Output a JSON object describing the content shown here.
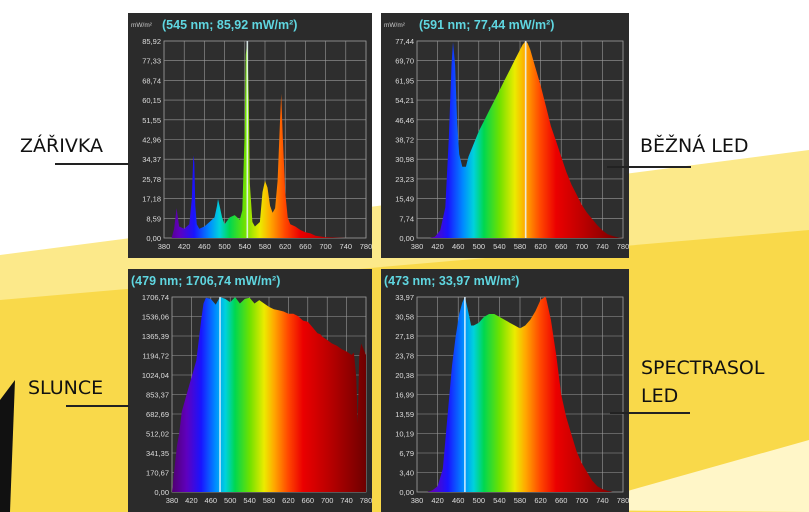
{
  "labels": {
    "zarivka": "ZÁŘIVKA",
    "bezna_led": "BĚŽNÁ LED",
    "slunce": "SLUNCE",
    "spectrasol_line1": "SPECTRASOL",
    "spectrasol_line2": "LED"
  },
  "colors": {
    "background_yellow": "#f9d94a",
    "background_light": "#fce98a",
    "panel_bg": "#2b2b2b",
    "grid": "#9a9a9a",
    "readout": "#5fd6e0"
  },
  "chart_data": [
    {
      "type": "area",
      "name": "zarivka",
      "readout": "(545 nm; 85,92 mW/m²)",
      "unit": "mW/m²",
      "y_ticks": [
        "85,92",
        "77,33",
        "68,74",
        "60,15",
        "51,55",
        "42,96",
        "34,37",
        "25,78",
        "17,18",
        "8,59",
        "0,00"
      ],
      "x_ticks": [
        "380",
        "420",
        "460",
        "500",
        "540",
        "580",
        "620",
        "660",
        "700",
        "740",
        "780"
      ],
      "xlim": [
        380,
        780
      ],
      "ylim": [
        0,
        85.92
      ],
      "cursor_x": 545,
      "x": [
        380,
        395,
        400,
        405,
        410,
        420,
        430,
        435,
        438,
        440,
        442,
        445,
        450,
        460,
        470,
        480,
        485,
        487,
        490,
        495,
        500,
        510,
        520,
        530,
        535,
        540,
        542,
        545,
        548,
        550,
        555,
        560,
        570,
        575,
        580,
        585,
        590,
        595,
        600,
        605,
        610,
        612,
        615,
        620,
        625,
        630,
        640,
        650,
        660,
        670,
        680,
        700,
        740,
        780
      ],
      "y": [
        0,
        0,
        4,
        13,
        5,
        4,
        6,
        17,
        36,
        33,
        14,
        6,
        4,
        5,
        7,
        9,
        14,
        17,
        14,
        9,
        6,
        9,
        10,
        8,
        12,
        48,
        80,
        85.92,
        60,
        24,
        7,
        5,
        7,
        20,
        25,
        22,
        14,
        11,
        13,
        25,
        52,
        63,
        45,
        20,
        9,
        6,
        5,
        3.5,
        2.5,
        2,
        1,
        0.3,
        0,
        0
      ]
    },
    {
      "type": "area",
      "name": "bezna_led",
      "readout": "(591 nm; 77,44 mW/m²)",
      "unit": "mW/m²",
      "y_ticks": [
        "77,44",
        "69,70",
        "61,95",
        "54,21",
        "46,46",
        "38,72",
        "30,98",
        "23,23",
        "15,49",
        "7,74",
        "0,00"
      ],
      "x_ticks": [
        "380",
        "420",
        "460",
        "500",
        "540",
        "580",
        "620",
        "660",
        "700",
        "740",
        "780"
      ],
      "xlim": [
        380,
        780
      ],
      "ylim": [
        0,
        77.44
      ],
      "cursor_x": 591,
      "x": [
        380,
        405,
        415,
        425,
        435,
        442,
        447,
        450,
        454,
        458,
        462,
        468,
        475,
        480,
        490,
        500,
        510,
        520,
        530,
        540,
        550,
        560,
        570,
        580,
        585,
        591,
        595,
        600,
        610,
        620,
        630,
        640,
        650,
        660,
        670,
        680,
        690,
        700,
        710,
        720,
        730,
        740,
        750,
        760,
        770,
        780
      ],
      "y": [
        0,
        0,
        0.5,
        3,
        12,
        40,
        68,
        77,
        68,
        45,
        33,
        28,
        28,
        32,
        37,
        42,
        46,
        50,
        54,
        58,
        62,
        66,
        70,
        74,
        76,
        77.44,
        76.5,
        74,
        67,
        60,
        52,
        44,
        38,
        32,
        26,
        21,
        17,
        13,
        10,
        7.5,
        5,
        3,
        1.5,
        0.8,
        0.2,
        0
      ]
    },
    {
      "type": "area",
      "name": "slunce",
      "readout": "(479 nm; 1706,74 mW/m²)",
      "unit": "",
      "y_ticks": [
        "1706,74",
        "1536,06",
        "1365,39",
        "1194,72",
        "1024,04",
        "853,37",
        "682,69",
        "512,02",
        "341,35",
        "170,67",
        "0,00"
      ],
      "x_ticks": [
        "380",
        "420",
        "460",
        "500",
        "540",
        "580",
        "620",
        "660",
        "700",
        "740",
        "780"
      ],
      "xlim": [
        380,
        780
      ],
      "ylim": [
        0,
        1706.74
      ],
      "cursor_x": 479,
      "x": [
        380,
        385,
        390,
        395,
        400,
        410,
        420,
        430,
        440,
        445,
        450,
        460,
        470,
        479,
        490,
        500,
        510,
        520,
        530,
        540,
        550,
        560,
        570,
        580,
        590,
        600,
        610,
        620,
        630,
        640,
        650,
        660,
        670,
        680,
        686,
        690,
        700,
        710,
        720,
        730,
        740,
        750,
        755,
        760,
        763,
        766,
        770,
        775,
        780
      ],
      "y": [
        0,
        200,
        400,
        520,
        700,
        850,
        1000,
        1150,
        1500,
        1650,
        1700,
        1690,
        1640,
        1706.74,
        1690,
        1660,
        1706,
        1650,
        1690,
        1700,
        1650,
        1680,
        1650,
        1620,
        1600,
        1590,
        1580,
        1560,
        1560,
        1540,
        1500,
        1490,
        1440,
        1390,
        1380,
        1360,
        1330,
        1300,
        1280,
        1250,
        1230,
        1200,
        1220,
        1000,
        600,
        1190,
        1300,
        1250,
        1200
      ]
    },
    {
      "type": "area",
      "name": "spectrasol_led",
      "readout": "(473 nm; 33,97 mW/m²)",
      "unit": "",
      "y_ticks": [
        "33,97",
        "30,58",
        "27,18",
        "23,78",
        "20,38",
        "16,99",
        "13,59",
        "10,19",
        "6,79",
        "3,40",
        "0,00"
      ],
      "x_ticks": [
        "380",
        "420",
        "460",
        "500",
        "540",
        "580",
        "620",
        "660",
        "700",
        "740",
        "780"
      ],
      "xlim": [
        380,
        780
      ],
      "ylim": [
        0,
        33.97
      ],
      "cursor_x": 473,
      "x": [
        380,
        400,
        410,
        420,
        430,
        440,
        448,
        455,
        462,
        468,
        473,
        478,
        485,
        490,
        500,
        510,
        520,
        530,
        540,
        550,
        560,
        570,
        580,
        590,
        600,
        610,
        620,
        630,
        640,
        650,
        660,
        670,
        680,
        690,
        700,
        710,
        720,
        730,
        740,
        750,
        760,
        780
      ],
      "y": [
        0,
        0,
        0.3,
        1,
        4,
        14,
        22,
        27,
        31,
        33,
        33.97,
        32,
        29,
        29,
        29.5,
        30.5,
        31,
        31,
        30.5,
        30,
        29.5,
        29,
        28.5,
        29,
        30,
        31.5,
        33.5,
        34,
        30,
        24,
        17,
        13,
        10,
        7,
        5,
        3.5,
        2,
        1,
        0.5,
        0.2,
        0,
        0
      ]
    }
  ]
}
